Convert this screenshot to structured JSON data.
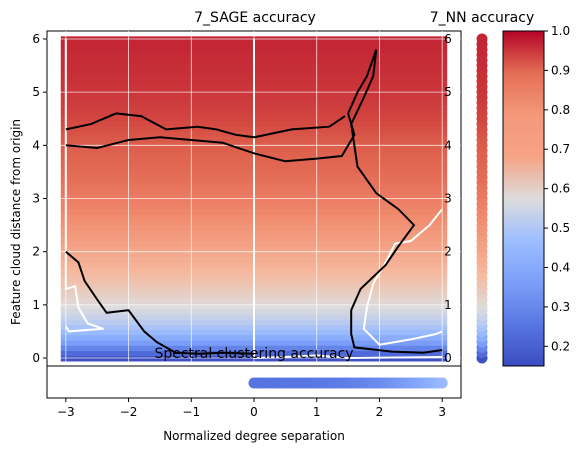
{
  "chart_data": [
    {
      "type": "heatmap",
      "title": "7_SAGE accuracy",
      "ylabel": "Feature cloud distance from origin",
      "xlim": [
        -3.3,
        3.3
      ],
      "ylim": [
        -0.15,
        6.15
      ],
      "xticks": [
        "−3",
        "−2",
        "−1",
        "0",
        "1",
        "2",
        "3"
      ],
      "yticks": [
        "0",
        "1",
        "2",
        "3",
        "4",
        "5",
        "6"
      ],
      "grid": true,
      "colormap": "coolwarm",
      "accuracy_profile": [
        [
          0.0,
          0.16
        ],
        [
          0.15,
          0.26
        ],
        [
          0.3,
          0.36
        ],
        [
          0.5,
          0.46
        ],
        [
          0.7,
          0.52
        ],
        [
          1.0,
          0.58
        ],
        [
          1.5,
          0.66
        ],
        [
          2.0,
          0.72
        ],
        [
          2.5,
          0.77
        ],
        [
          3.0,
          0.82
        ],
        [
          3.5,
          0.86
        ],
        [
          4.0,
          0.89
        ],
        [
          4.5,
          0.92
        ],
        [
          5.0,
          0.94
        ],
        [
          6.0,
          0.96
        ]
      ],
      "contours": {
        "black": [
          [
            -3,
            4.0
          ],
          [
            -2.5,
            3.95
          ],
          [
            -2.0,
            4.1
          ],
          [
            -1.5,
            4.15
          ],
          [
            -1.0,
            4.1
          ],
          [
            -0.5,
            4.05
          ],
          [
            0.0,
            3.85
          ],
          [
            0.5,
            3.7
          ],
          [
            1.0,
            3.75
          ],
          [
            1.4,
            3.8
          ],
          [
            1.6,
            4.2
          ],
          [
            1.5,
            4.6
          ],
          [
            1.65,
            5.0
          ],
          [
            1.8,
            5.3
          ],
          [
            1.95,
            5.8
          ],
          [
            1.9,
            5.3
          ],
          [
            1.75,
            4.9
          ],
          [
            1.55,
            4.4
          ],
          [
            1.65,
            3.6
          ],
          [
            1.95,
            3.1
          ],
          [
            2.3,
            2.8
          ],
          [
            2.55,
            2.5
          ],
          [
            2.3,
            2.1
          ],
          [
            2.1,
            1.75
          ],
          [
            1.7,
            1.3
          ],
          [
            1.55,
            0.9
          ],
          [
            1.55,
            0.45
          ],
          [
            1.6,
            0.2
          ],
          [
            2.2,
            0.12
          ],
          [
            2.7,
            0.1
          ],
          [
            3.0,
            0.15
          ]
        ],
        "black_lower": [
          [
            -3,
            2.0
          ],
          [
            -2.8,
            1.8
          ],
          [
            -2.7,
            1.45
          ],
          [
            -2.5,
            1.1
          ],
          [
            -2.35,
            0.85
          ],
          [
            -2.0,
            0.9
          ],
          [
            -1.75,
            0.5
          ],
          [
            -1.55,
            0.3
          ],
          [
            -1.25,
            0.1
          ],
          [
            -0.9,
            0.08
          ],
          [
            -0.5,
            0.1
          ],
          [
            0.0,
            0.08
          ]
        ],
        "black_top": [
          [
            -3,
            4.3
          ],
          [
            -2.6,
            4.4
          ],
          [
            -2.2,
            4.6
          ],
          [
            -1.8,
            4.55
          ],
          [
            -1.4,
            4.3
          ],
          [
            -0.9,
            4.35
          ],
          [
            -0.6,
            4.3
          ],
          [
            -0.3,
            4.2
          ],
          [
            0.0,
            4.15
          ],
          [
            0.6,
            4.3
          ],
          [
            1.2,
            4.35
          ],
          [
            1.45,
            4.55
          ]
        ],
        "white": [
          [
            0.0,
            6.0
          ],
          [
            0.0,
            0.0
          ],
          [
            0.5,
            0.02
          ],
          [
            1.0,
            0.05
          ],
          [
            1.5,
            0.0
          ],
          [
            3.0,
            0.02
          ]
        ],
        "white_left": [
          [
            -3.0,
            6.0
          ],
          [
            -3.0,
            1.3
          ],
          [
            -2.85,
            1.35
          ],
          [
            -2.8,
            0.95
          ],
          [
            -2.65,
            0.65
          ],
          [
            -2.4,
            0.55
          ],
          [
            -2.95,
            0.5
          ],
          [
            -3.0,
            0.6
          ]
        ],
        "white_right": [
          [
            3.0,
            2.8
          ],
          [
            2.8,
            2.5
          ],
          [
            2.5,
            2.2
          ],
          [
            2.25,
            2.15
          ],
          [
            2.1,
            1.8
          ],
          [
            1.9,
            1.4
          ],
          [
            1.8,
            0.95
          ],
          [
            1.75,
            0.55
          ],
          [
            2.0,
            0.25
          ],
          [
            2.5,
            0.35
          ],
          [
            2.9,
            0.45
          ],
          [
            3.0,
            0.5
          ]
        ]
      }
    },
    {
      "type": "heatmap",
      "title": "7_NN accuracy",
      "yticks": [
        "0",
        "1",
        "2",
        "3",
        "4",
        "5",
        "6"
      ],
      "colorbar": {
        "ticks": [
          "0.2",
          "0.3",
          "0.4",
          "0.5",
          "0.6",
          "0.7",
          "0.8",
          "0.9",
          "1.0"
        ],
        "range": [
          0.15,
          1.0
        ]
      }
    },
    {
      "type": "scatter",
      "title": "Spectral clustering accuracy",
      "xlabel": "Normalized degree separation",
      "x_range": [
        0.0,
        3.0
      ],
      "accuracy_range": [
        0.25,
        0.45
      ]
    }
  ]
}
